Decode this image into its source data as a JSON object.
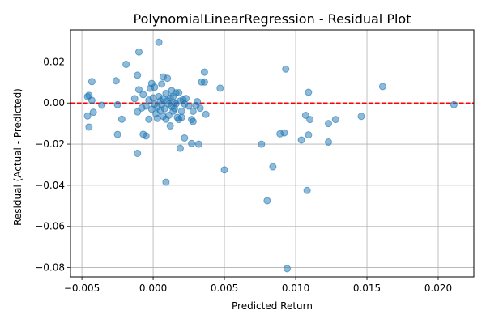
{
  "chart_data": {
    "type": "scatter",
    "title": "PolynomialLinearRegression - Residual Plot",
    "xlabel": "Predicted Return",
    "ylabel": "Residual (Actual - Predicted)",
    "xlim": [
      -0.0058,
      0.0225
    ],
    "ylim": [
      -0.0845,
      0.0355
    ],
    "xticks": [
      -0.005,
      0.0,
      0.005,
      0.01,
      0.015,
      0.02
    ],
    "xtick_labels": [
      "−0.005",
      "0.000",
      "0.005",
      "0.010",
      "0.015",
      "0.020"
    ],
    "yticks": [
      -0.08,
      -0.06,
      -0.04,
      -0.02,
      0.0,
      0.02
    ],
    "ytick_labels": [
      "−0.08",
      "−0.06",
      "−0.04",
      "−0.02",
      "0.00",
      "0.02"
    ],
    "grid": true,
    "reference_line": {
      "y": 0.0,
      "color": "#ff0000",
      "style": "dashed"
    },
    "point_color": "#1f77b4",
    "point_alpha": 0.5,
    "points": [
      [
        -0.0046,
        0.0031
      ],
      [
        -0.0045,
        0.0037
      ],
      [
        -0.0043,
        0.0013
      ],
      [
        -0.0043,
        0.0104
      ],
      [
        -0.0046,
        -0.0063
      ],
      [
        -0.0045,
        -0.0117
      ],
      [
        -0.0042,
        -0.0045
      ],
      [
        -0.0036,
        -0.0011
      ],
      [
        -0.0026,
        0.0108
      ],
      [
        -0.0025,
        -0.0008
      ],
      [
        -0.0025,
        -0.0153
      ],
      [
        -0.0022,
        -0.0079
      ],
      [
        -0.0019,
        0.0188
      ],
      [
        -0.0013,
        0.0021
      ],
      [
        -0.0011,
        0.0135
      ],
      [
        -0.001,
        0.0248
      ],
      [
        -0.001,
        0.0065
      ],
      [
        -0.0011,
        -0.0043
      ],
      [
        -0.0011,
        -0.0245
      ],
      [
        -0.0008,
        -0.0024
      ],
      [
        -0.0007,
        0.0041
      ],
      [
        -0.0007,
        -0.0152
      ],
      [
        -0.0005,
        -0.016
      ],
      [
        -0.0005,
        -0.0015
      ],
      [
        -0.0003,
        0.0014
      ],
      [
        -0.0003,
        -0.0079
      ],
      [
        -0.0002,
        0.0071
      ],
      [
        -0.0001,
        0.0095
      ],
      [
        -0.0001,
        -0.003
      ],
      [
        0.0,
        0.0025
      ],
      [
        0.0001,
        0.0077
      ],
      [
        0.0001,
        -0.0006
      ],
      [
        0.0002,
        -0.0052
      ],
      [
        0.0003,
        -0.0075
      ],
      [
        0.0003,
        -0.002
      ],
      [
        0.0004,
        0.0295
      ],
      [
        0.0004,
        0.0031
      ],
      [
        0.0005,
        0.001
      ],
      [
        0.0005,
        -0.0036
      ],
      [
        0.0006,
        0.0092
      ],
      [
        0.0006,
        -0.0008
      ],
      [
        0.0007,
        0.0127
      ],
      [
        0.0007,
        0.0021
      ],
      [
        0.0007,
        -0.0065
      ],
      [
        0.0008,
        -0.0028
      ],
      [
        0.0009,
        0.0046
      ],
      [
        0.0009,
        -0.0079
      ],
      [
        0.0009,
        -0.0385
      ],
      [
        0.001,
        0.012
      ],
      [
        0.001,
        0.0011
      ],
      [
        0.0011,
        -0.0004
      ],
      [
        0.0011,
        -0.006
      ],
      [
        0.0012,
        -0.0111
      ],
      [
        0.0012,
        0.0025
      ],
      [
        0.0013,
        0.006
      ],
      [
        0.0013,
        -0.0017
      ],
      [
        0.0014,
        -0.004
      ],
      [
        0.0014,
        0.0032
      ],
      [
        0.0015,
        0.0002
      ],
      [
        0.0015,
        -0.0027
      ],
      [
        0.0016,
        0.0049
      ],
      [
        0.0016,
        -0.0004
      ],
      [
        0.0017,
        -0.007
      ],
      [
        0.0018,
        -0.008
      ],
      [
        0.0018,
        0.005
      ],
      [
        0.0019,
        -0.022
      ],
      [
        0.0019,
        0.001
      ],
      [
        0.002,
        -0.004
      ],
      [
        0.002,
        -0.007
      ],
      [
        0.0021,
        0.0015
      ],
      [
        0.0022,
        -0.0005
      ],
      [
        0.0022,
        -0.017
      ],
      [
        0.0023,
        0.0022
      ],
      [
        0.0025,
        -0.0015
      ],
      [
        0.0027,
        -0.0197
      ],
      [
        0.0027,
        -0.008
      ],
      [
        0.0028,
        -0.009
      ],
      [
        0.0028,
        -0.004
      ],
      [
        0.003,
        -0.0012
      ],
      [
        0.0031,
        0.0007
      ],
      [
        0.0032,
        -0.02
      ],
      [
        0.0033,
        -0.0025
      ],
      [
        0.0034,
        0.0102
      ],
      [
        0.0036,
        0.0102
      ],
      [
        0.0036,
        0.015
      ],
      [
        0.0037,
        -0.0055
      ],
      [
        0.0047,
        0.0072
      ],
      [
        0.005,
        -0.0325
      ],
      [
        0.0076,
        -0.02
      ],
      [
        0.008,
        -0.0475
      ],
      [
        0.0084,
        -0.031
      ],
      [
        0.0089,
        -0.015
      ],
      [
        0.0092,
        -0.0145
      ],
      [
        0.0093,
        0.0165
      ],
      [
        0.0094,
        -0.0805
      ],
      [
        0.0104,
        -0.018
      ],
      [
        0.0107,
        -0.006
      ],
      [
        0.0108,
        -0.0425
      ],
      [
        0.0109,
        -0.0155
      ],
      [
        0.0109,
        0.0052
      ],
      [
        0.011,
        -0.008
      ],
      [
        0.0123,
        -0.01
      ],
      [
        0.0123,
        -0.019
      ],
      [
        0.0128,
        -0.008
      ],
      [
        0.0146,
        -0.0065
      ],
      [
        0.0161,
        0.008
      ],
      [
        0.0211,
        -0.0008
      ]
    ]
  }
}
